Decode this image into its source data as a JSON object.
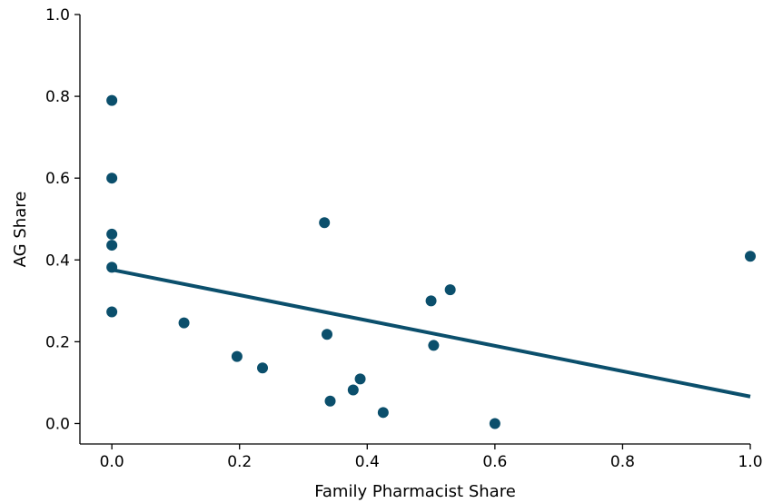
{
  "chart_data": {
    "type": "scatter",
    "title": "",
    "xlabel": "Family Pharmacist Share",
    "ylabel": "AG Share",
    "xlim": [
      -0.05,
      1.0
    ],
    "ylim": [
      -0.05,
      1.0
    ],
    "xticks": [
      0.0,
      0.2,
      0.4,
      0.6,
      0.8,
      1.0
    ],
    "yticks": [
      0.0,
      0.2,
      0.4,
      0.6,
      0.8,
      1.0
    ],
    "xtick_labels": [
      "0.0",
      "0.2",
      "0.4",
      "0.6",
      "0.8",
      "1.0"
    ],
    "ytick_labels": [
      "0.0",
      "0.2",
      "0.4",
      "0.6",
      "0.8",
      "1.0"
    ],
    "grid": false,
    "color": "#0b4f6c",
    "series": [
      {
        "points": [
          {
            "x": 0.0,
            "y": 0.79
          },
          {
            "x": 0.0,
            "y": 0.6
          },
          {
            "x": 0.0,
            "y": 0.463
          },
          {
            "x": 0.0,
            "y": 0.436
          },
          {
            "x": 0.0,
            "y": 0.382
          },
          {
            "x": 0.0,
            "y": 0.273
          },
          {
            "x": 0.113,
            "y": 0.246
          },
          {
            "x": 0.196,
            "y": 0.164
          },
          {
            "x": 0.236,
            "y": 0.136
          },
          {
            "x": 0.333,
            "y": 0.491
          },
          {
            "x": 0.337,
            "y": 0.218
          },
          {
            "x": 0.342,
            "y": 0.055
          },
          {
            "x": 0.378,
            "y": 0.082
          },
          {
            "x": 0.389,
            "y": 0.109
          },
          {
            "x": 0.425,
            "y": 0.027
          },
          {
            "x": 0.5,
            "y": 0.3
          },
          {
            "x": 0.504,
            "y": 0.191
          },
          {
            "x": 0.53,
            "y": 0.327
          },
          {
            "x": 0.6,
            "y": 0.0
          },
          {
            "x": 1.0,
            "y": 0.409
          }
        ]
      }
    ],
    "fit_line": {
      "x": [
        0.0,
        1.0
      ],
      "y": [
        0.376,
        0.066
      ]
    }
  }
}
